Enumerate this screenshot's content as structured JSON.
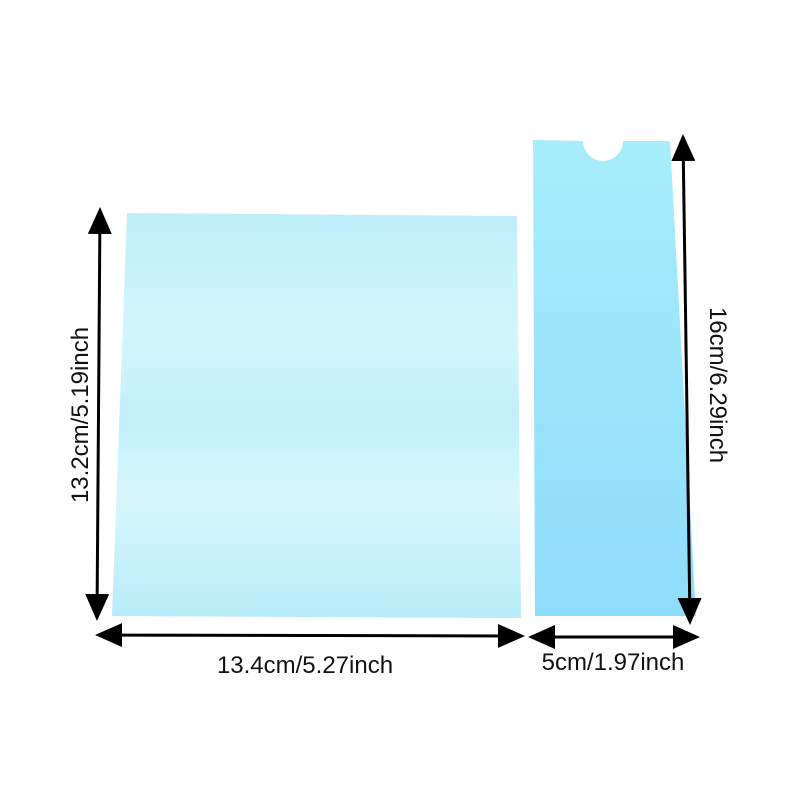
{
  "labels": {
    "left_height": "13.2cm/5.19inch",
    "left_width": "13.4cm/5.27inch",
    "right_height": "16cm/6.29inch",
    "right_width": "5cm/1.97inch"
  },
  "colors": {
    "left_sheet": "#c4f0fb",
    "right_strip": "#9ee6fb",
    "arrows": "#000000"
  }
}
